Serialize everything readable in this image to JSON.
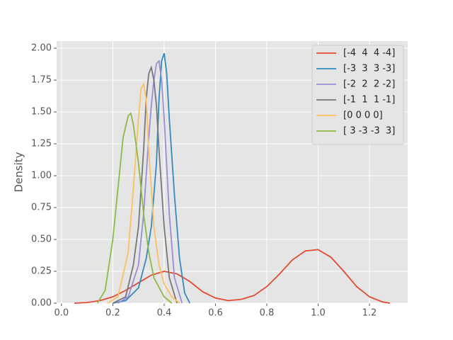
{
  "chart_data": {
    "type": "line",
    "y_label": "Density",
    "xlim": [
      -0.019,
      1.349
    ],
    "ylim": [
      0,
      2.056
    ],
    "xticks": [
      {
        "value": 0,
        "label": "0.0"
      },
      0.2,
      0.4,
      0.6,
      0.8,
      {
        "value": 1,
        "label": "1.0"
      },
      1.2
    ],
    "yticks": [
      {
        "value": 0,
        "label": "0.00"
      },
      0.25,
      {
        "value": 0.5,
        "label": "0.50"
      },
      0.75,
      {
        "value": 1,
        "label": "1.00"
      },
      1.25,
      {
        "value": 1.5,
        "label": "1.50"
      },
      1.75,
      {
        "value": 2,
        "label": "2.00"
      }
    ],
    "grid": true,
    "legend": "upper right",
    "series": [
      {
        "name": "[-4  4  4 -4]",
        "color": "#E24A33",
        "x": [
          0.05,
          0.1,
          0.15,
          0.2,
          0.25,
          0.3,
          0.35,
          0.4,
          0.45,
          0.5,
          0.55,
          0.6,
          0.65,
          0.7,
          0.75,
          0.8,
          0.85,
          0.9,
          0.95,
          1.0,
          1.05,
          1.1,
          1.15,
          1.2,
          1.25,
          1.28
        ],
        "values": [
          0,
          0.005,
          0.02,
          0.05,
          0.1,
          0.16,
          0.22,
          0.25,
          0.23,
          0.17,
          0.09,
          0.04,
          0.02,
          0.03,
          0.06,
          0.13,
          0.23,
          0.34,
          0.41,
          0.42,
          0.36,
          0.25,
          0.13,
          0.05,
          0.01,
          0
        ]
      },
      {
        "name": "[-3  3  3 -3]",
        "color": "#348ABD",
        "x": [
          0.2,
          0.25,
          0.3,
          0.33,
          0.35,
          0.37,
          0.38,
          0.39,
          0.4,
          0.41,
          0.42,
          0.44,
          0.46,
          0.48,
          0.5
        ],
        "values": [
          0,
          0.02,
          0.12,
          0.35,
          0.6,
          1.1,
          1.6,
          1.9,
          1.96,
          1.8,
          1.45,
          0.85,
          0.35,
          0.08,
          0
        ]
      },
      {
        "name": "[-2  2  2 -2]",
        "color": "#988ED5",
        "x": [
          0.22,
          0.26,
          0.3,
          0.32,
          0.34,
          0.35,
          0.36,
          0.37,
          0.38,
          0.39,
          0.4,
          0.42,
          0.44,
          0.47
        ],
        "values": [
          0,
          0.05,
          0.3,
          0.7,
          1.3,
          1.55,
          1.75,
          1.88,
          1.9,
          1.75,
          1.45,
          0.7,
          0.2,
          0
        ]
      },
      {
        "name": "[-1  1  1 -1]",
        "color": "#777777",
        "x": [
          0.2,
          0.25,
          0.28,
          0.3,
          0.32,
          0.33,
          0.34,
          0.35,
          0.36,
          0.37,
          0.38,
          0.4,
          0.42,
          0.45
        ],
        "values": [
          0,
          0.05,
          0.3,
          0.6,
          1.2,
          1.6,
          1.8,
          1.85,
          1.75,
          1.55,
          1.2,
          0.6,
          0.2,
          0
        ]
      },
      {
        "name": "[0 0 0 0]",
        "color": "#FBC15E",
        "x": [
          0.18,
          0.22,
          0.26,
          0.28,
          0.3,
          0.31,
          0.32,
          0.33,
          0.34,
          0.36,
          0.38,
          0.4,
          0.43,
          0.46
        ],
        "values": [
          0,
          0.05,
          0.4,
          0.9,
          1.45,
          1.68,
          1.72,
          1.6,
          1.2,
          0.6,
          0.3,
          0.15,
          0.05,
          0
        ]
      },
      {
        "name": "[ 3 -3 -3  3]",
        "color": "#8EBA42",
        "x": [
          0.14,
          0.17,
          0.2,
          0.22,
          0.24,
          0.26,
          0.27,
          0.28,
          0.3,
          0.32,
          0.34,
          0.36,
          0.4,
          0.43
        ],
        "values": [
          0,
          0.1,
          0.5,
          0.9,
          1.3,
          1.47,
          1.49,
          1.4,
          1.1,
          0.7,
          0.4,
          0.2,
          0.05,
          0
        ]
      }
    ]
  }
}
